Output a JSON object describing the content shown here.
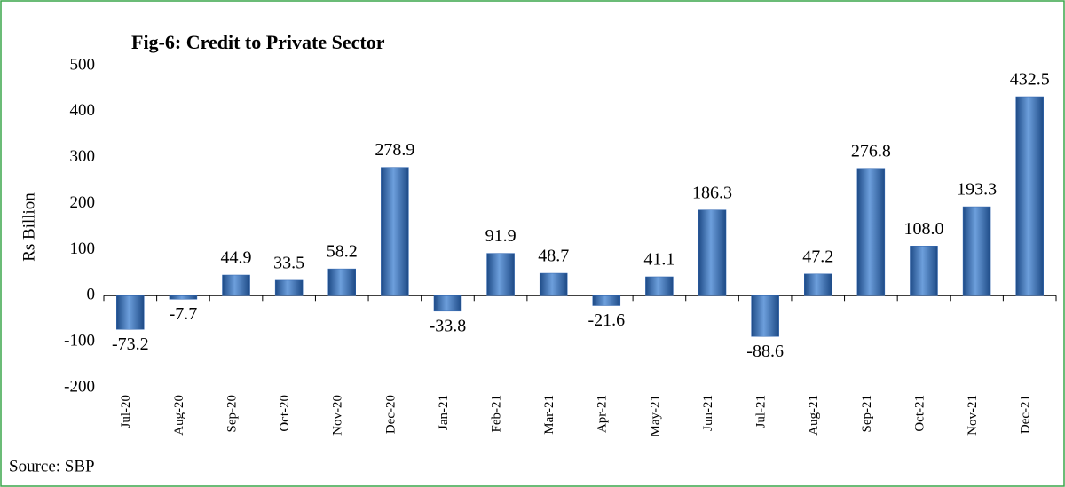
{
  "chart_data": {
    "type": "bar",
    "title": "Fig-6: Credit to Private Sector",
    "y_label": "Rs Billion",
    "source": "Source: SBP",
    "categories": [
      "Jul-20",
      "Aug-20",
      "Sep-20",
      "Oct-20",
      "Nov-20",
      "Dec-20",
      "Jan-21",
      "Feb-21",
      "Mar-21",
      "Apr-21",
      "May-21",
      "Jun-21",
      "Jul-21",
      "Aug-21",
      "Sep-21",
      "Oct-21",
      "Nov-21",
      "Dec-21"
    ],
    "values": [
      -73.2,
      -7.7,
      44.9,
      33.5,
      58.2,
      278.9,
      -33.8,
      91.9,
      48.7,
      -21.6,
      41.1,
      186.3,
      -88.6,
      47.2,
      276.8,
      108,
      193.3,
      432.5
    ],
    "value_labels": [
      "-73.2",
      "-7.7",
      "44.9",
      "33.5",
      "58.2",
      "278.9",
      "-33.8",
      "91.9",
      "48.7",
      "-21.6",
      "41.1",
      "186.3",
      "-88.6",
      "47.2",
      "276.8",
      "108.0",
      "193.3",
      "432.5"
    ],
    "color": "#2e64b0",
    "ylim": [
      -200,
      500
    ],
    "yticks": [
      -200,
      -100,
      0,
      100,
      200,
      300,
      400,
      500
    ],
    "grid": false
  }
}
